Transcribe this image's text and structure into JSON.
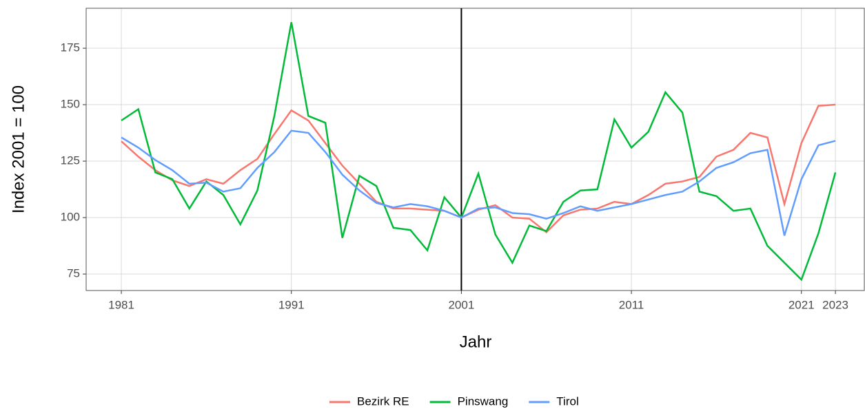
{
  "chart_data": {
    "type": "line",
    "x_label": "Jahr",
    "y_label": "Index 2001 = 100",
    "x": [
      1981,
      1982,
      1983,
      1984,
      1985,
      1986,
      1987,
      1988,
      1989,
      1990,
      1991,
      1992,
      1993,
      1994,
      1995,
      1996,
      1997,
      1998,
      1999,
      2000,
      2001,
      2002,
      2003,
      2004,
      2005,
      2006,
      2007,
      2008,
      2009,
      2010,
      2011,
      2012,
      2013,
      2014,
      2015,
      2016,
      2017,
      2018,
      2019,
      2020,
      2021,
      2022,
      2023
    ],
    "series": [
      {
        "name": "Bezirk RE",
        "color": "#F8766D",
        "values": [
          133.8,
          127,
          121,
          116.5,
          114,
          117,
          115,
          121,
          126,
          137,
          147.5,
          143,
          133,
          123,
          115,
          107,
          104,
          104,
          103.5,
          103,
          100,
          103.5,
          105.5,
          100,
          99.5,
          93.5,
          101,
          103.5,
          104,
          107,
          106,
          110,
          115,
          116,
          118,
          127,
          130,
          137.5,
          135.5,
          106,
          133,
          149.5,
          150
        ]
      },
      {
        "name": "Pinswang",
        "color": "#00BA38",
        "values": [
          143,
          148,
          120,
          117,
          104,
          116,
          110,
          97,
          112,
          145,
          186.5,
          145,
          142,
          91,
          118.5,
          114,
          95.5,
          94.5,
          85.5,
          109,
          100,
          119.5,
          92.5,
          80,
          96.5,
          94,
          107,
          112,
          112.5,
          143.5,
          131,
          138,
          155.5,
          146.5,
          111.5,
          109.5,
          103,
          104,
          87.5,
          80,
          72.5,
          93,
          120
        ]
      },
      {
        "name": "Tirol",
        "color": "#619CFF",
        "values": [
          135.5,
          131,
          125.5,
          121,
          115,
          115.5,
          111.5,
          113,
          122,
          129,
          138.5,
          137.5,
          129,
          119,
          112,
          106.5,
          104.5,
          106,
          105,
          103,
          100,
          104,
          104.5,
          102,
          101.5,
          99.5,
          102,
          105,
          103,
          104.5,
          106,
          108,
          110,
          111.5,
          116,
          122,
          124.5,
          128.5,
          130,
          92,
          117,
          132,
          134
        ]
      }
    ],
    "xlim": [
      1978.93,
      2024.7
    ],
    "ylim": [
      67.7,
      192.7
    ],
    "xticks": [
      1981,
      1991,
      2001,
      2011,
      2021,
      2023
    ],
    "yticks": [
      75,
      100,
      125,
      150,
      175
    ],
    "vline": 2001,
    "grid": true,
    "legend": "bottom"
  }
}
